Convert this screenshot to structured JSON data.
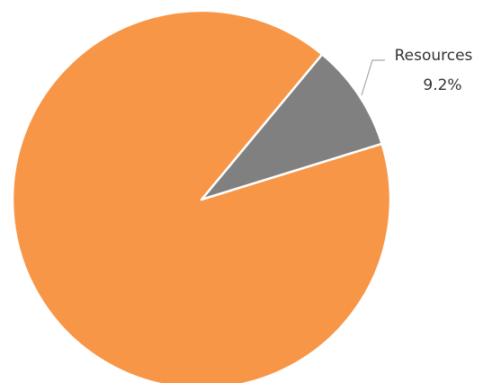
{
  "chart_data": {
    "type": "pie",
    "categories": [
      "Resources",
      null
    ],
    "values": [
      9.2,
      90.8
    ],
    "value_labels": [
      "9.2%",
      null
    ],
    "colors": [
      "#808080",
      "#F79646"
    ]
  }
}
